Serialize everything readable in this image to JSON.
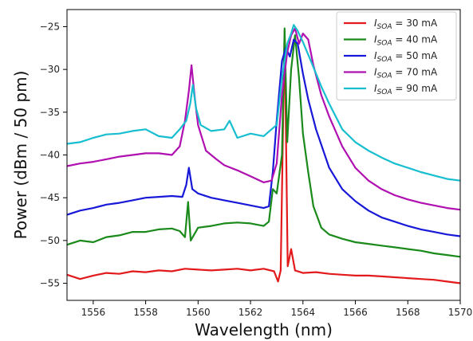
{
  "chart_data": {
    "type": "line",
    "xlabel": "Wavelength (nm)",
    "ylabel": "Power (dBm / 50 pm)",
    "xlim": [
      1555,
      1570
    ],
    "ylim": [
      -57,
      -23
    ],
    "x_ticks": [
      1556,
      1558,
      1560,
      1562,
      1564,
      1566,
      1568,
      1570
    ],
    "y_ticks": [
      -55,
      -50,
      -45,
      -40,
      -35,
      -30,
      -25
    ],
    "grid": false,
    "legend_position": "top-right",
    "series": [
      {
        "name": "I_SOA = 30 mA",
        "legend": {
          "prefix": "I",
          "sub": "SOA",
          "suffix": " = 30 mA"
        },
        "color": "#e31a1c",
        "points": [
          [
            1555.0,
            -54.0
          ],
          [
            1555.5,
            -54.5
          ],
          [
            1556.0,
            -54.1
          ],
          [
            1556.5,
            -53.8
          ],
          [
            1557.0,
            -53.9
          ],
          [
            1557.5,
            -53.6
          ],
          [
            1558.0,
            -53.7
          ],
          [
            1558.5,
            -53.5
          ],
          [
            1559.0,
            -53.6
          ],
          [
            1559.5,
            -53.3
          ],
          [
            1560.0,
            -53.4
          ],
          [
            1560.5,
            -53.5
          ],
          [
            1561.0,
            -53.4
          ],
          [
            1561.5,
            -53.3
          ],
          [
            1562.0,
            -53.5
          ],
          [
            1562.5,
            -53.3
          ],
          [
            1562.9,
            -53.6
          ],
          [
            1563.05,
            -54.8
          ],
          [
            1563.15,
            -53.5
          ],
          [
            1563.3,
            -25.5
          ],
          [
            1563.42,
            -53.0
          ],
          [
            1563.55,
            -51.0
          ],
          [
            1563.7,
            -53.5
          ],
          [
            1564.0,
            -53.8
          ],
          [
            1564.5,
            -53.7
          ],
          [
            1565.0,
            -53.9
          ],
          [
            1565.5,
            -54.0
          ],
          [
            1566.0,
            -54.1
          ],
          [
            1566.5,
            -54.1
          ],
          [
            1567.0,
            -54.2
          ],
          [
            1567.5,
            -54.3
          ],
          [
            1568.0,
            -54.4
          ],
          [
            1568.5,
            -54.5
          ],
          [
            1569.0,
            -54.6
          ],
          [
            1569.5,
            -54.8
          ],
          [
            1570.0,
            -55.0
          ]
        ]
      },
      {
        "name": "I_SOA = 40 mA",
        "legend": {
          "prefix": "I",
          "sub": "SOA",
          "suffix": " = 40 mA"
        },
        "color": "#1a8a1a",
        "points": [
          [
            1555.0,
            -50.5
          ],
          [
            1555.5,
            -50.0
          ],
          [
            1556.0,
            -50.2
          ],
          [
            1556.5,
            -49.6
          ],
          [
            1557.0,
            -49.4
          ],
          [
            1557.5,
            -49.0
          ],
          [
            1558.0,
            -49.0
          ],
          [
            1558.5,
            -48.7
          ],
          [
            1559.0,
            -48.6
          ],
          [
            1559.3,
            -48.9
          ],
          [
            1559.5,
            -49.6
          ],
          [
            1559.62,
            -45.5
          ],
          [
            1559.72,
            -50.0
          ],
          [
            1560.0,
            -48.5
          ],
          [
            1560.5,
            -48.3
          ],
          [
            1561.0,
            -48.0
          ],
          [
            1561.5,
            -47.9
          ],
          [
            1562.0,
            -48.0
          ],
          [
            1562.5,
            -48.3
          ],
          [
            1562.7,
            -47.8
          ],
          [
            1562.85,
            -44.0
          ],
          [
            1563.0,
            -44.5
          ],
          [
            1563.2,
            -40.0
          ],
          [
            1563.3,
            -25.2
          ],
          [
            1563.4,
            -38.5
          ],
          [
            1563.55,
            -30.0
          ],
          [
            1563.7,
            -26.0
          ],
          [
            1563.85,
            -31.0
          ],
          [
            1564.0,
            -37.5
          ],
          [
            1564.2,
            -42.0
          ],
          [
            1564.4,
            -46.0
          ],
          [
            1564.7,
            -48.5
          ],
          [
            1565.0,
            -49.3
          ],
          [
            1565.5,
            -49.8
          ],
          [
            1566.0,
            -50.2
          ],
          [
            1566.5,
            -50.4
          ],
          [
            1567.0,
            -50.6
          ],
          [
            1567.5,
            -50.8
          ],
          [
            1568.0,
            -51.0
          ],
          [
            1568.5,
            -51.2
          ],
          [
            1569.0,
            -51.5
          ],
          [
            1569.5,
            -51.7
          ],
          [
            1570.0,
            -51.9
          ]
        ]
      },
      {
        "name": "I_SOA = 50 mA",
        "legend": {
          "prefix": "I",
          "sub": "SOA",
          "suffix": " = 50 mA"
        },
        "color": "#1818d8",
        "points": [
          [
            1555.0,
            -47.0
          ],
          [
            1555.5,
            -46.5
          ],
          [
            1556.0,
            -46.2
          ],
          [
            1556.5,
            -45.8
          ],
          [
            1557.0,
            -45.6
          ],
          [
            1557.5,
            -45.3
          ],
          [
            1558.0,
            -45.0
          ],
          [
            1558.5,
            -44.9
          ],
          [
            1559.0,
            -44.8
          ],
          [
            1559.4,
            -44.9
          ],
          [
            1559.55,
            -43.5
          ],
          [
            1559.65,
            -41.5
          ],
          [
            1559.78,
            -44.0
          ],
          [
            1560.0,
            -44.5
          ],
          [
            1560.5,
            -45.0
          ],
          [
            1561.0,
            -45.3
          ],
          [
            1561.5,
            -45.6
          ],
          [
            1562.0,
            -45.9
          ],
          [
            1562.5,
            -46.2
          ],
          [
            1562.7,
            -46.0
          ],
          [
            1562.85,
            -42.0
          ],
          [
            1563.0,
            -36.0
          ],
          [
            1563.2,
            -29.0
          ],
          [
            1563.35,
            -27.5
          ],
          [
            1563.5,
            -28.5
          ],
          [
            1563.65,
            -26.5
          ],
          [
            1563.8,
            -27.0
          ],
          [
            1564.0,
            -30.5
          ],
          [
            1564.2,
            -33.5
          ],
          [
            1564.5,
            -37.0
          ],
          [
            1565.0,
            -41.5
          ],
          [
            1565.5,
            -44.0
          ],
          [
            1566.0,
            -45.4
          ],
          [
            1566.5,
            -46.5
          ],
          [
            1567.0,
            -47.3
          ],
          [
            1567.5,
            -47.8
          ],
          [
            1568.0,
            -48.3
          ],
          [
            1568.5,
            -48.7
          ],
          [
            1569.0,
            -49.0
          ],
          [
            1569.5,
            -49.3
          ],
          [
            1570.0,
            -49.5
          ]
        ]
      },
      {
        "name": "I_SOA = 70 mA",
        "legend": {
          "prefix": "I",
          "sub": "SOA",
          "suffix": " = 70 mA"
        },
        "color": "#b010b0",
        "points": [
          [
            1555.0,
            -41.3
          ],
          [
            1555.5,
            -41.0
          ],
          [
            1556.0,
            -40.8
          ],
          [
            1556.5,
            -40.5
          ],
          [
            1557.0,
            -40.2
          ],
          [
            1557.5,
            -40.0
          ],
          [
            1558.0,
            -39.8
          ],
          [
            1558.5,
            -39.8
          ],
          [
            1559.0,
            -40.0
          ],
          [
            1559.3,
            -39.0
          ],
          [
            1559.5,
            -36.0
          ],
          [
            1559.65,
            -32.5
          ],
          [
            1559.75,
            -29.5
          ],
          [
            1559.88,
            -33.5
          ],
          [
            1560.0,
            -36.5
          ],
          [
            1560.3,
            -39.5
          ],
          [
            1560.7,
            -40.5
          ],
          [
            1561.0,
            -41.2
          ],
          [
            1561.5,
            -41.8
          ],
          [
            1562.0,
            -42.5
          ],
          [
            1562.5,
            -43.2
          ],
          [
            1562.8,
            -43.0
          ],
          [
            1563.0,
            -41.0
          ],
          [
            1563.2,
            -33.0
          ],
          [
            1563.4,
            -28.0
          ],
          [
            1563.55,
            -26.0
          ],
          [
            1563.7,
            -25.2
          ],
          [
            1563.85,
            -27.0
          ],
          [
            1564.0,
            -25.8
          ],
          [
            1564.2,
            -26.5
          ],
          [
            1564.4,
            -29.5
          ],
          [
            1564.7,
            -33.0
          ],
          [
            1565.0,
            -35.5
          ],
          [
            1565.5,
            -39.0
          ],
          [
            1566.0,
            -41.5
          ],
          [
            1566.5,
            -43.0
          ],
          [
            1567.0,
            -44.0
          ],
          [
            1567.5,
            -44.7
          ],
          [
            1568.0,
            -45.2
          ],
          [
            1568.5,
            -45.6
          ],
          [
            1569.0,
            -45.9
          ],
          [
            1569.5,
            -46.2
          ],
          [
            1570.0,
            -46.4
          ]
        ]
      },
      {
        "name": "I_SOA = 90 mA",
        "legend": {
          "prefix": "I",
          "sub": "SOA",
          "suffix": " = 90 mA"
        },
        "color": "#17becf",
        "points": [
          [
            1555.0,
            -38.7
          ],
          [
            1555.5,
            -38.5
          ],
          [
            1556.0,
            -38.0
          ],
          [
            1556.5,
            -37.6
          ],
          [
            1557.0,
            -37.5
          ],
          [
            1557.5,
            -37.2
          ],
          [
            1558.0,
            -37.0
          ],
          [
            1558.5,
            -37.8
          ],
          [
            1559.0,
            -38.0
          ],
          [
            1559.3,
            -37.0
          ],
          [
            1559.55,
            -36.0
          ],
          [
            1559.7,
            -34.0
          ],
          [
            1559.8,
            -31.8
          ],
          [
            1559.92,
            -34.5
          ],
          [
            1560.1,
            -36.5
          ],
          [
            1560.5,
            -37.2
          ],
          [
            1561.0,
            -37.0
          ],
          [
            1561.2,
            -36.0
          ],
          [
            1561.5,
            -38.0
          ],
          [
            1562.0,
            -37.5
          ],
          [
            1562.5,
            -37.8
          ],
          [
            1562.8,
            -37.0
          ],
          [
            1563.0,
            -36.5
          ],
          [
            1563.2,
            -31.0
          ],
          [
            1563.4,
            -27.0
          ],
          [
            1563.55,
            -25.8
          ],
          [
            1563.65,
            -24.8
          ],
          [
            1563.8,
            -25.5
          ],
          [
            1564.0,
            -26.8
          ],
          [
            1564.3,
            -29.0
          ],
          [
            1564.7,
            -32.0
          ],
          [
            1565.0,
            -34.0
          ],
          [
            1565.5,
            -37.0
          ],
          [
            1566.0,
            -38.5
          ],
          [
            1566.5,
            -39.5
          ],
          [
            1567.0,
            -40.3
          ],
          [
            1567.5,
            -41.0
          ],
          [
            1568.0,
            -41.5
          ],
          [
            1568.5,
            -42.0
          ],
          [
            1569.0,
            -42.4
          ],
          [
            1569.5,
            -42.8
          ],
          [
            1570.0,
            -43.0
          ]
        ]
      }
    ]
  }
}
